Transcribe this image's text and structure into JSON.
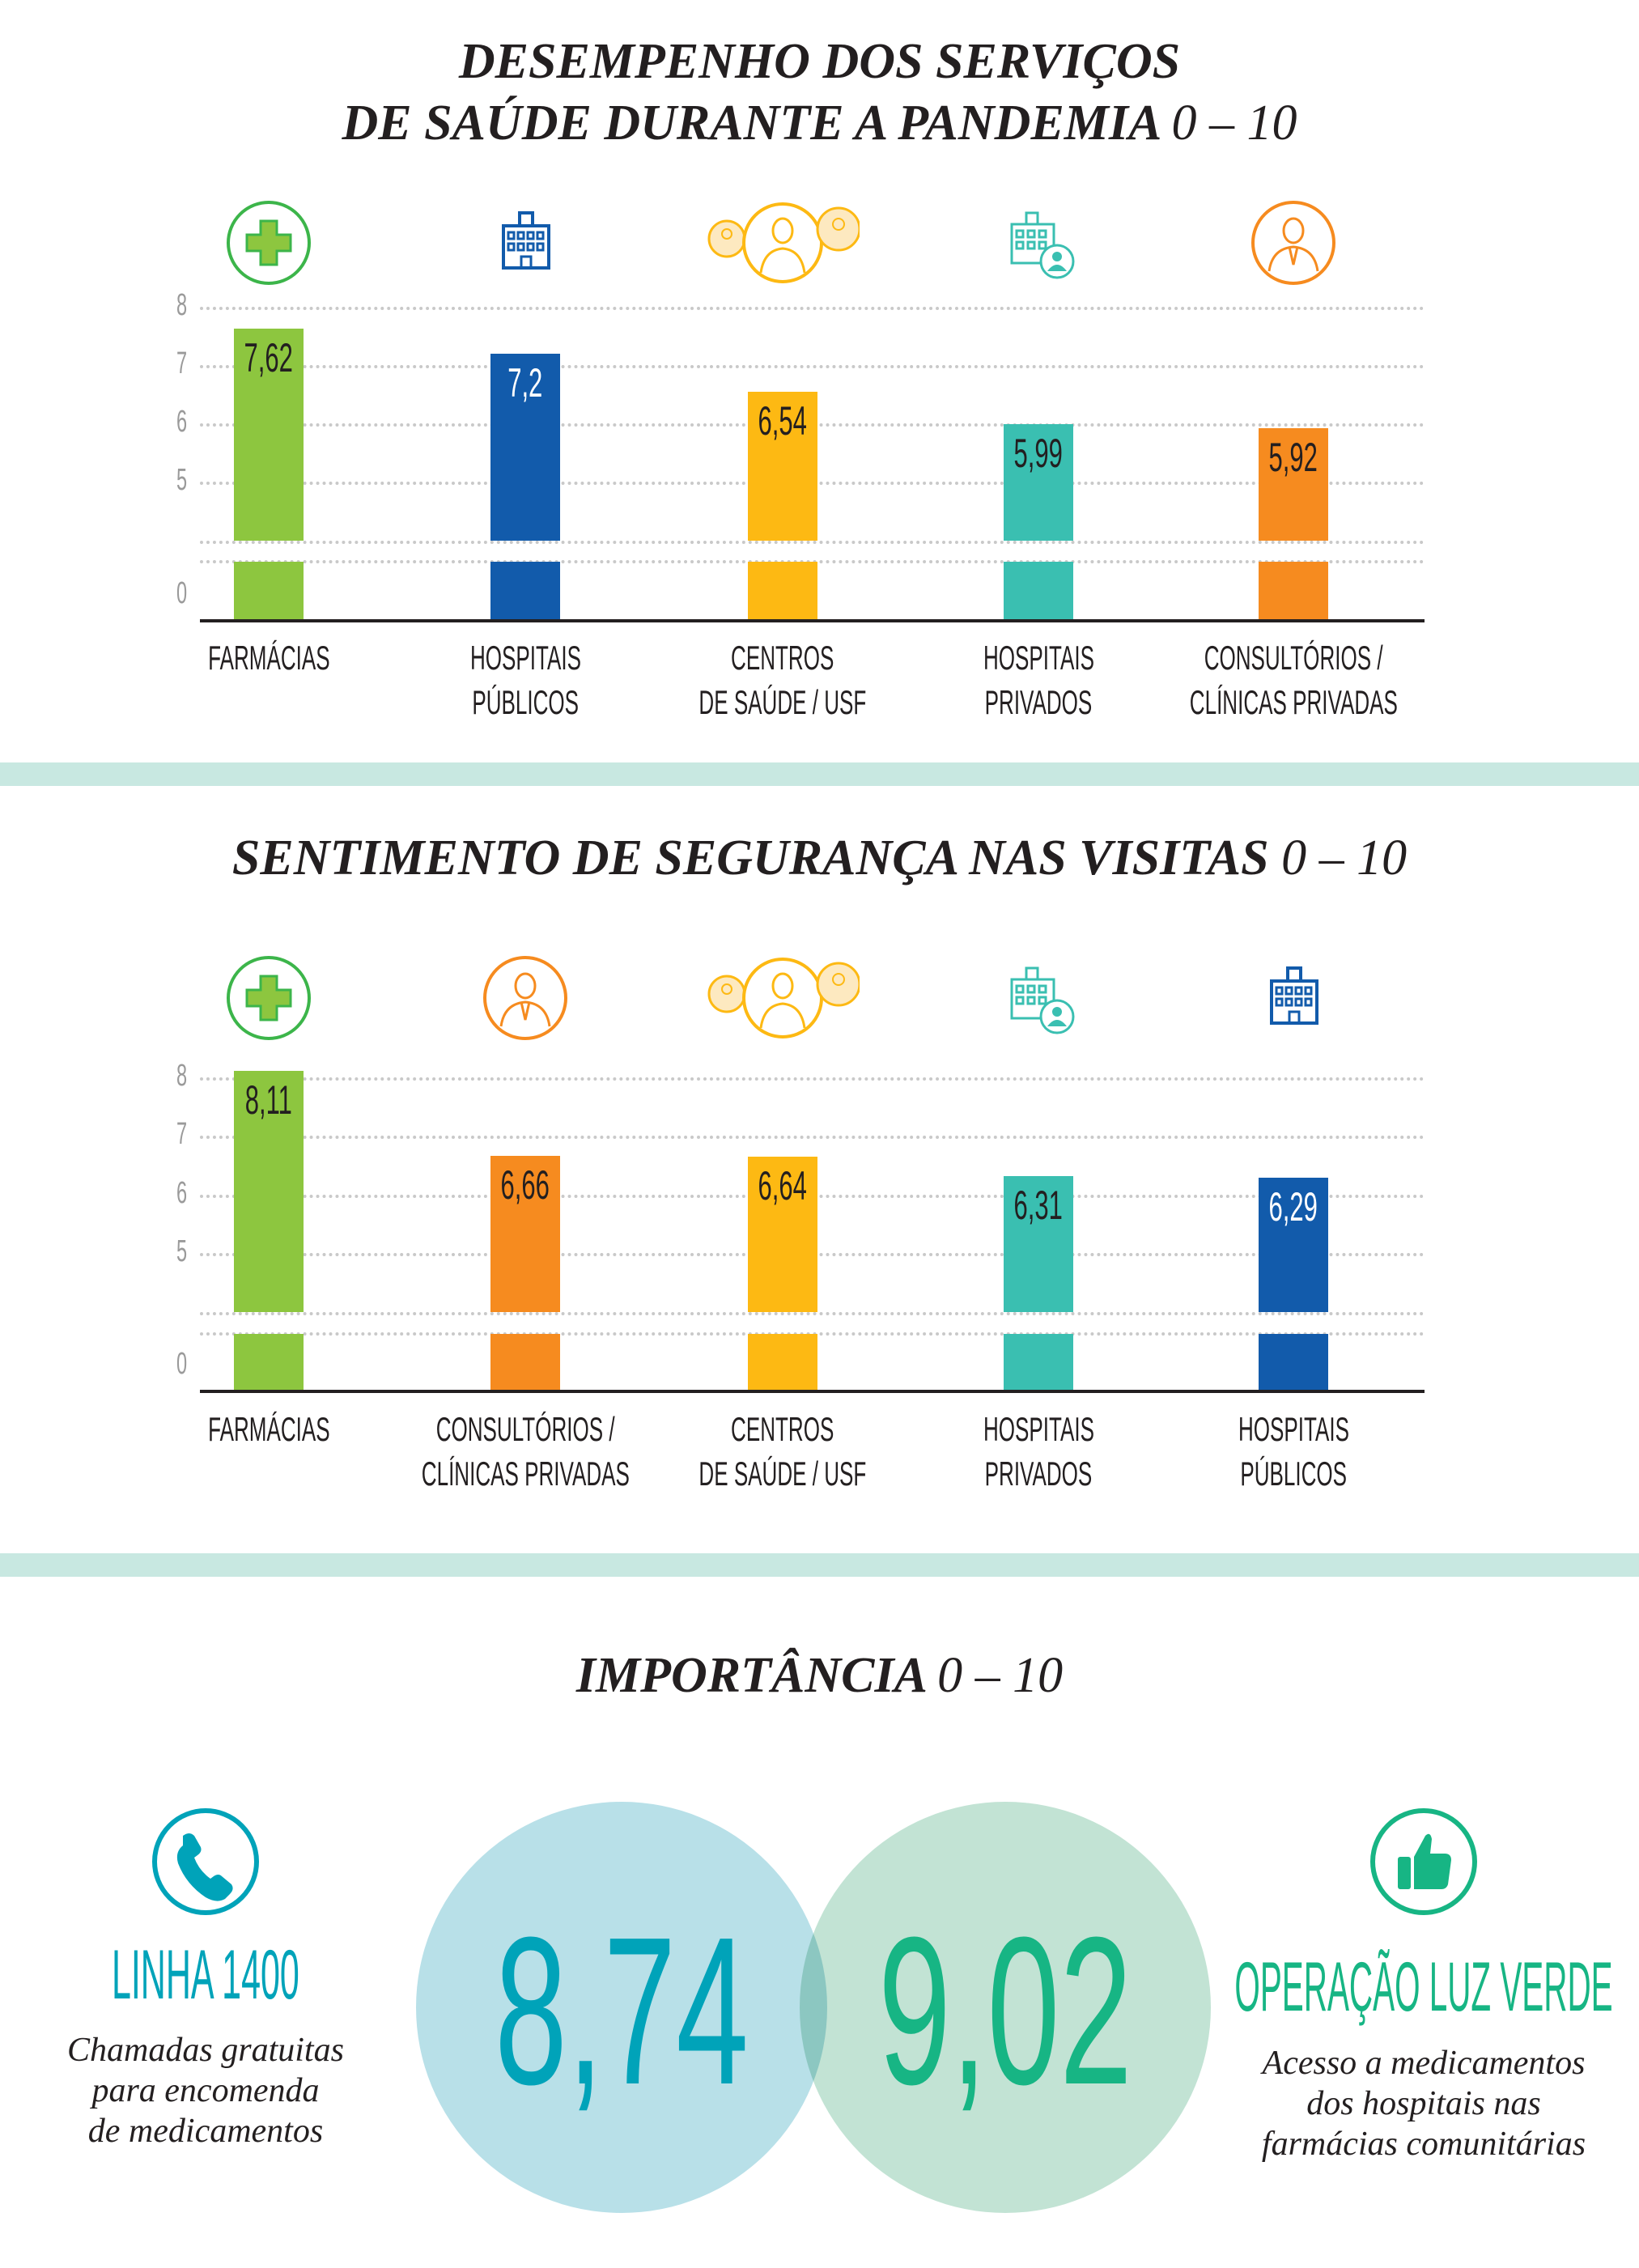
{
  "colors": {
    "green": "#8dc63f",
    "blue": "#125bab",
    "yellow": "#fdb913",
    "teal": "#3abfb1",
    "orange": "#f68b1f",
    "band": "#c8e8e1",
    "phone": "#00a3b9",
    "thumb": "#17b584"
  },
  "chart_data": [
    {
      "type": "bar",
      "title": "DESEMPENHO DOS SERVIÇOS DE SAÚDE DURANTE A PANDEMIA",
      "title_lines": [
        "DESEMPENHO DOS SERVIÇOS",
        "DE SAÚDE DURANTE A PANDEMIA"
      ],
      "range_label": "0 – 10",
      "yticks": [
        "8",
        "7",
        "6",
        "5",
        "0"
      ],
      "ylim": [
        0,
        8
      ],
      "axis_break": true,
      "grid": true,
      "categories": [
        [
          "FARMÁCIAS",
          ""
        ],
        [
          "HOSPITAIS",
          "PÚBLICOS"
        ],
        [
          "CENTROS",
          "DE SAÚDE / USF"
        ],
        [
          "HOSPITAIS",
          "PRIVADOS"
        ],
        [
          "CONSULTÓRIOS /",
          "CLÍNICAS PRIVADAS"
        ]
      ],
      "icons": [
        "pharmacy-cross-icon",
        "hospital-icon",
        "doctors-group-icon",
        "private-hospital-icon",
        "doctor-icon"
      ],
      "values": [
        7.62,
        7.2,
        6.54,
        5.99,
        5.92
      ],
      "labels": [
        "7,62",
        "7,2",
        "6,54",
        "5,99",
        "5,92"
      ],
      "colors": [
        "#8dc63f",
        "#125bab",
        "#fdb913",
        "#3abfb1",
        "#f68b1f"
      ]
    },
    {
      "type": "bar",
      "title": "SENTIMENTO DE SEGURANÇA NAS VISITAS",
      "title_lines": [
        "SENTIMENTO DE SEGURANÇA NAS VISITAS"
      ],
      "range_label": "0 – 10",
      "yticks": [
        "8",
        "7",
        "6",
        "5",
        "0"
      ],
      "ylim": [
        0,
        8
      ],
      "axis_break": true,
      "grid": true,
      "categories": [
        [
          "FARMÁCIAS",
          ""
        ],
        [
          "CONSULTÓRIOS /",
          "CLÍNICAS PRIVADAS"
        ],
        [
          "CENTROS",
          "DE SAÚDE / USF"
        ],
        [
          "HOSPITAIS",
          "PRIVADOS"
        ],
        [
          "HOSPITAIS",
          "PÚBLICOS"
        ]
      ],
      "icons": [
        "pharmacy-cross-icon",
        "doctor-icon",
        "doctors-group-icon",
        "private-hospital-icon",
        "hospital-icon"
      ],
      "values": [
        8.11,
        6.66,
        6.64,
        6.31,
        6.29
      ],
      "labels": [
        "8,11",
        "6,66",
        "6,64",
        "6,31",
        "6,29"
      ],
      "colors": [
        "#8dc63f",
        "#f68b1f",
        "#fdb913",
        "#3abfb1",
        "#125bab"
      ]
    }
  ],
  "importance": {
    "title": "IMPORTÂNCIA",
    "range_label": "0 – 10",
    "left": {
      "icon": "phone-icon",
      "name": "LINHA 1400",
      "value": "8,74",
      "desc": [
        "Chamadas gratuitas",
        "para encomenda",
        "de medicamentos"
      ]
    },
    "right": {
      "icon": "thumbs-up-icon",
      "name": "OPERAÇÃO LUZ VERDE",
      "value": "9,02",
      "desc": [
        "Acesso a medicamentos",
        "dos hospitais nas",
        "farmácias comunitárias"
      ]
    }
  }
}
